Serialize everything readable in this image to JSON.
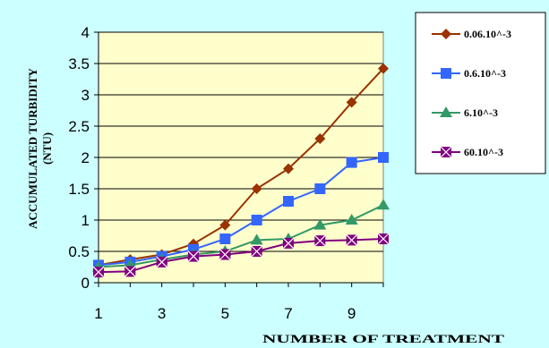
{
  "colors": {
    "page_background": "#ccffff",
    "plot_background": "#ffffcc",
    "legend_background": "#ffffff"
  },
  "chart_data": {
    "type": "line",
    "title": "",
    "xlabel": "NUMBER OF TREATMENT",
    "ylabel": "ACCUMULATED TURBIDITY (NTU)",
    "ylim": [
      0,
      4
    ],
    "xlim": [
      1,
      10
    ],
    "y_ticks": [
      0,
      0.5,
      1,
      1.5,
      2,
      2.5,
      3,
      3.5,
      4
    ],
    "y_tick_labels": [
      "0",
      "0.5",
      "1",
      "1.5",
      "2",
      "2.5",
      "3",
      "3.5",
      "4"
    ],
    "x_ticks": [
      1,
      3,
      5,
      7,
      9
    ],
    "x_tick_labels": [
      "1",
      "3",
      "5",
      "7",
      "9"
    ],
    "grid": "horizontal",
    "legend_position": "right",
    "x": [
      1,
      2,
      3,
      4,
      5,
      6,
      7,
      8,
      9,
      10
    ],
    "series": [
      {
        "name": "0.06.10^-3",
        "color": "#993300",
        "marker": "diamond",
        "values": [
          0.28,
          0.37,
          0.45,
          0.62,
          0.92,
          1.5,
          1.82,
          2.3,
          2.88,
          3.42
        ]
      },
      {
        "name": "0.6.10^-3",
        "color": "#3366ff",
        "marker": "square",
        "values": [
          0.28,
          0.33,
          0.42,
          0.53,
          0.7,
          1.0,
          1.3,
          1.5,
          1.92,
          2.0
        ]
      },
      {
        "name": "6.10^-3",
        "color": "#339966",
        "marker": "triangle",
        "values": [
          0.25,
          0.28,
          0.37,
          0.45,
          0.5,
          0.68,
          0.7,
          0.92,
          1.0,
          1.24
        ]
      },
      {
        "name": "60.10^-3",
        "color": "#800080",
        "marker": "x-square",
        "values": [
          0.17,
          0.18,
          0.33,
          0.42,
          0.45,
          0.5,
          0.63,
          0.67,
          0.68,
          0.7
        ]
      }
    ]
  }
}
